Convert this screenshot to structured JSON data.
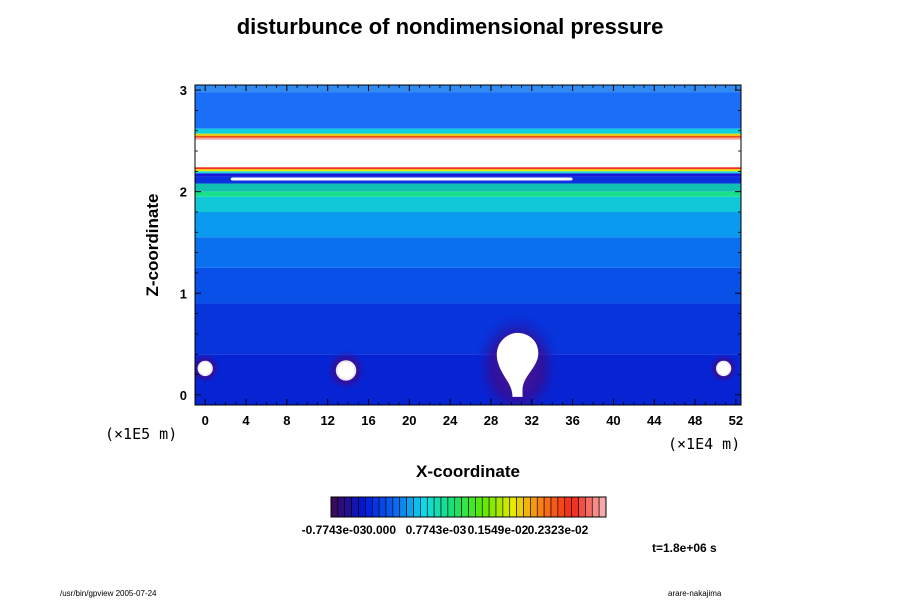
{
  "chart_data": {
    "type": "heatmap",
    "title": "disturbunce of nondimensional pressure",
    "xlabel": "X-coordinate",
    "ylabel": "Z-coordinate",
    "x_scale_label": "(×1E4 m)",
    "y_scale_label": "(×1E5 m)",
    "xlim": [
      -1,
      52.5
    ],
    "ylim": [
      -0.1,
      3.05
    ],
    "x_ticks": [
      "0",
      "4",
      "8",
      "12",
      "16",
      "20",
      "24",
      "28",
      "32",
      "36",
      "40",
      "44",
      "48",
      "52"
    ],
    "y_ticks": [
      "0",
      "1",
      "2",
      "3"
    ],
    "colorbar": {
      "labels": [
        "-0.7743e-03",
        "0.000",
        "0.7743e-03",
        "0.1549e-02",
        "0.2323e-02"
      ],
      "colors": [
        "#3a0a5e",
        "#0018d8",
        "#0a64f2",
        "#10d8e8",
        "#18e070",
        "#60e800",
        "#e8e800",
        "#f87818",
        "#f02818",
        "#f8a8a8"
      ]
    },
    "layers": [
      {
        "z": [
          2.98,
          3.05
        ],
        "color": "#2f8af2"
      },
      {
        "z": [
          2.62,
          2.98
        ],
        "color": "#1a6ef8"
      },
      {
        "z": [
          2.57,
          2.62
        ],
        "color": "#10d0e0"
      },
      {
        "z": [
          2.55,
          2.57
        ],
        "color": "#e8d800"
      },
      {
        "z": [
          2.53,
          2.55
        ],
        "color": "#f05018"
      },
      {
        "z": [
          2.51,
          2.53
        ],
        "color": "#f8a8a8"
      },
      {
        "z": [
          2.24,
          2.51
        ],
        "color": "#ffffff"
      },
      {
        "z": [
          2.22,
          2.24
        ],
        "color": "#f03020"
      },
      {
        "z": [
          2.2,
          2.22
        ],
        "color": "#e8e800"
      },
      {
        "z": [
          2.18,
          2.2
        ],
        "color": "#18d8e0"
      },
      {
        "z": [
          2.15,
          2.18
        ],
        "color": "#1818d8"
      },
      {
        "z": [
          2.08,
          2.15
        ],
        "color": "#0a30e0"
      },
      {
        "z": [
          2.0,
          2.08
        ],
        "color": "#10c0b0"
      },
      {
        "z": [
          1.95,
          2.0
        ],
        "color": "#18e088"
      },
      {
        "z": [
          1.8,
          1.95
        ],
        "color": "#10c8d8"
      },
      {
        "z": [
          1.55,
          1.8
        ],
        "color": "#0a9af0"
      },
      {
        "z": [
          1.25,
          1.55
        ],
        "color": "#0a70f0"
      },
      {
        "z": [
          0.9,
          1.25
        ],
        "color": "#0850e8"
      },
      {
        "z": [
          0.4,
          0.9
        ],
        "color": "#0834dc"
      },
      {
        "z": [
          -0.1,
          0.4
        ],
        "color": "#0624d4"
      }
    ],
    "undefined_regions": [
      {
        "shape": "bar",
        "x": [
          2.5,
          36
        ],
        "z": [
          2.11,
          2.14
        ]
      },
      {
        "shape": "circle",
        "x": 0,
        "z": 0.26,
        "r": 0.6,
        "rz": 0.06
      },
      {
        "shape": "circle",
        "x": 13.8,
        "z": 0.24,
        "r": 0.8,
        "rz": 0.08
      },
      {
        "shape": "circle",
        "x": 50.8,
        "z": 0.26,
        "r": 0.6,
        "rz": 0.06
      },
      {
        "shape": "plume",
        "x": 30.6,
        "z": 0.0
      }
    ],
    "time": "t=1.8e+06 s",
    "footer_left": "/usr/bin/gpview 2005-07-24",
    "footer_right": "arare-nakajima"
  }
}
